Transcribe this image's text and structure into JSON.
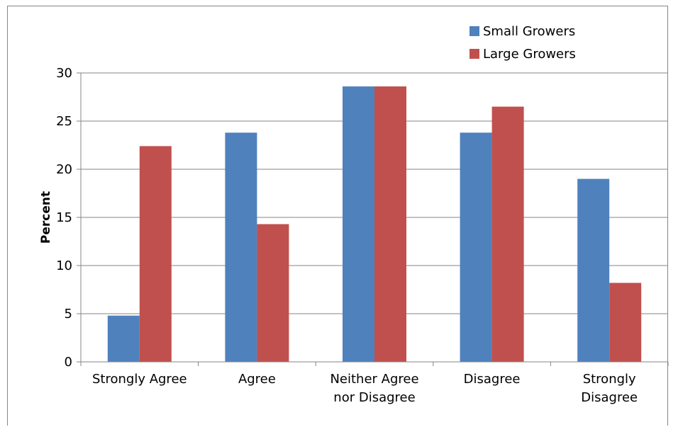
{
  "chart_data": {
    "type": "bar",
    "title": "",
    "xlabel": "",
    "ylabel": "Percent",
    "ylim": [
      0,
      30
    ],
    "yticks": [
      0,
      5,
      10,
      15,
      20,
      25,
      30
    ],
    "grid": true,
    "legend_position": "top-right",
    "categories": [
      [
        "Strongly Agree"
      ],
      [
        "Agree"
      ],
      [
        "Neither Agree",
        "nor Disagree"
      ],
      [
        "Disagree"
      ],
      [
        "Strongly",
        "Disagree"
      ]
    ],
    "series": [
      {
        "name": "Small Growers",
        "color": "#4F81BD",
        "values": [
          4.8,
          23.8,
          28.6,
          23.8,
          19.0
        ]
      },
      {
        "name": "Large Growers",
        "color": "#C0504D",
        "values": [
          22.4,
          14.3,
          28.6,
          26.5,
          8.2
        ]
      }
    ]
  }
}
